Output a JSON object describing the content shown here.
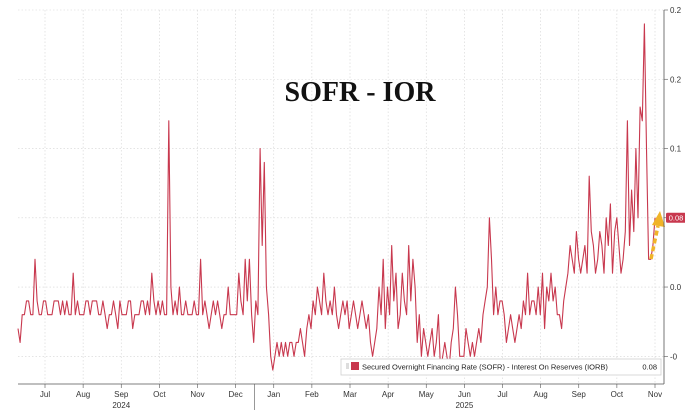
{
  "chart_data": {
    "type": "line",
    "title": "SOFR - IOR",
    "xlabel": "",
    "ylabel": "",
    "x_month_labels": [
      "Jul",
      "Aug",
      "Sep",
      "Oct",
      "Nov",
      "Dec",
      "Jan",
      "Feb",
      "Mar",
      "Apr",
      "May",
      "Jun",
      "Jul",
      "Aug",
      "Sep",
      "Oct",
      "Nov"
    ],
    "x_year_labels": [
      "2024",
      "2025"
    ],
    "y_tick_labels": [
      "-0",
      "0.0",
      "0.1",
      "0.1",
      "0.2",
      "0.2"
    ],
    "ylim": [
      -0.04,
      0.23
    ],
    "grid": true,
    "legend_position": "bottom-right",
    "series": [
      {
        "name": "Secured Overnight Financing Rate (SOFR) - Interest On Reserves (IORB)",
        "last_value_label": "0.08",
        "color": "#c8384e",
        "values": [
          0.0,
          -0.01,
          0.01,
          0.01,
          0.02,
          0.02,
          0.01,
          0.01,
          0.05,
          0.02,
          0.01,
          0.01,
          0.02,
          0.02,
          0.01,
          0.01,
          0.01,
          0.02,
          0.02,
          0.02,
          0.01,
          0.02,
          0.01,
          0.02,
          0.01,
          0.01,
          0.04,
          0.01,
          0.02,
          0.01,
          0.01,
          0.01,
          0.02,
          0.02,
          0.01,
          0.02,
          0.02,
          0.02,
          0.01,
          0.01,
          0.02,
          0.01,
          0.0,
          0.01,
          0.01,
          0.02,
          0.01,
          0.0,
          0.02,
          0.01,
          0.01,
          0.01,
          0.02,
          0.02,
          0.0,
          0.01,
          0.01,
          0.01,
          0.02,
          0.02,
          0.01,
          0.02,
          0.01,
          0.04,
          0.02,
          0.01,
          0.02,
          0.01,
          0.02,
          0.01,
          0.01,
          0.15,
          0.03,
          0.01,
          0.02,
          0.01,
          0.03,
          0.01,
          0.01,
          0.02,
          0.01,
          0.01,
          0.01,
          0.02,
          0.01,
          0.01,
          0.05,
          0.01,
          0.02,
          0.01,
          0.0,
          0.01,
          0.02,
          0.01,
          0.02,
          0.01,
          0.0,
          0.01,
          0.01,
          0.03,
          0.01,
          0.01,
          0.01,
          0.01,
          0.04,
          0.02,
          0.01,
          0.05,
          0.02,
          0.05,
          0.01,
          -0.01,
          0.02,
          0.01,
          0.13,
          0.06,
          0.12,
          0.03,
          0.01,
          -0.02,
          -0.03,
          -0.02,
          -0.01,
          -0.02,
          -0.01,
          -0.02,
          -0.01,
          -0.02,
          -0.01,
          -0.01,
          -0.02,
          -0.01,
          -0.01,
          0.0,
          -0.01,
          -0.02,
          0.0,
          0.01,
          0.0,
          0.02,
          0.01,
          0.03,
          0.02,
          0.01,
          0.04,
          0.02,
          0.01,
          0.02,
          0.01,
          0.03,
          0.01,
          0.0,
          0.01,
          0.02,
          0.01,
          0.02,
          0.0,
          0.01,
          0.02,
          0.01,
          0.0,
          0.01,
          0.02,
          0.01,
          0.0,
          0.01,
          -0.01,
          -0.02,
          -0.01,
          0.0,
          0.03,
          0.01,
          0.05,
          0.0,
          0.03,
          0.01,
          0.06,
          0.02,
          0.04,
          0.0,
          0.01,
          0.04,
          0.02,
          0.01,
          0.06,
          0.02,
          0.05,
          0.03,
          -0.01,
          0.01,
          -0.02,
          0.0,
          -0.01,
          -0.02,
          -0.01,
          0.0,
          -0.02,
          -0.01,
          0.01,
          -0.03,
          -0.02,
          -0.01,
          -0.02,
          -0.03,
          -0.01,
          0.0,
          0.03,
          0.01,
          -0.02,
          -0.02,
          -0.02,
          0.0,
          -0.01,
          -0.02,
          -0.01,
          -0.02,
          -0.01,
          0.0,
          -0.01,
          0.01,
          0.02,
          0.03,
          0.08,
          0.05,
          0.01,
          0.03,
          0.01,
          0.02,
          0.02,
          0.01,
          -0.01,
          0.0,
          0.01,
          0.0,
          -0.01,
          0.0,
          0.01,
          0.0,
          0.02,
          0.01,
          0.04,
          0.01,
          0.02,
          0.02,
          0.01,
          0.03,
          0.01,
          0.04,
          0.0,
          0.03,
          0.02,
          0.04,
          0.02,
          0.03,
          0.01,
          0.01,
          0.0,
          0.02,
          0.03,
          0.04,
          0.06,
          0.05,
          0.04,
          0.07,
          0.05,
          0.04,
          0.05,
          0.06,
          0.04,
          0.11,
          0.07,
          0.06,
          0.04,
          0.05,
          0.07,
          0.06,
          0.04,
          0.08,
          0.06,
          0.09,
          0.04,
          0.07,
          0.08,
          0.06,
          0.04,
          0.05,
          0.07,
          0.15,
          0.06,
          0.1,
          0.07,
          0.13,
          0.08,
          0.16,
          0.15,
          0.22,
          0.13,
          0.05,
          0.05,
          0.06,
          0.08
        ]
      }
    ]
  },
  "colors": {
    "line": "#c8384e",
    "grid": "#d4d4d4",
    "axis": "#555555",
    "arrow": "#f0b429",
    "badge": "#c8384e"
  }
}
